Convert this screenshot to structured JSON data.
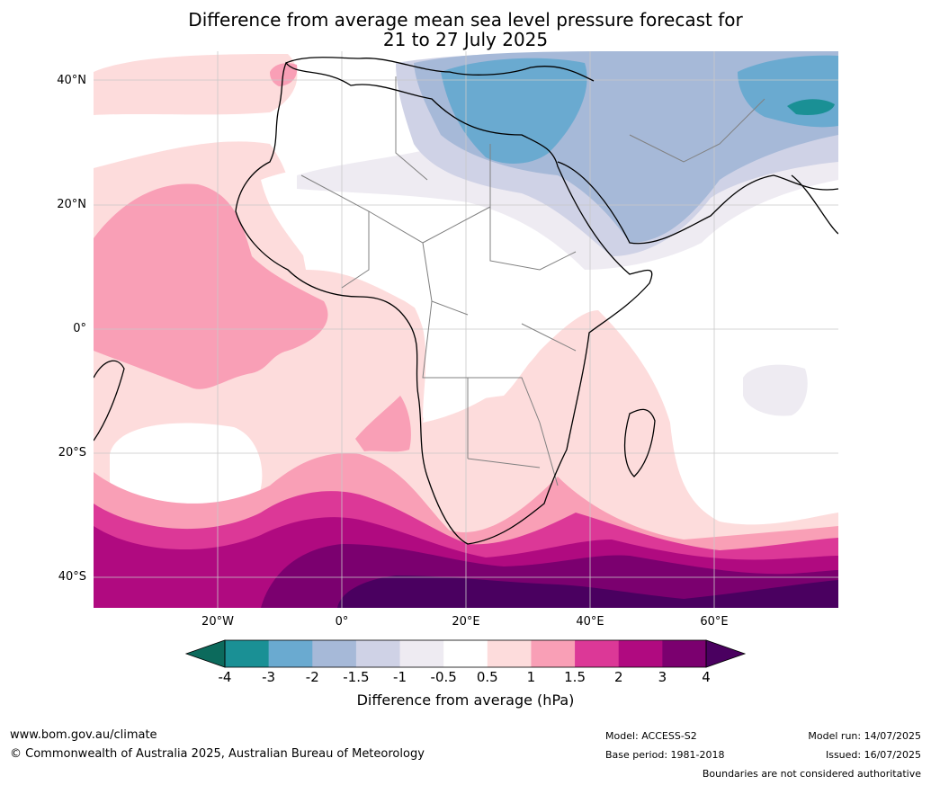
{
  "title": {
    "line1": "Difference from average mean sea level pressure forecast for",
    "line2": "21 to 27 July 2025"
  },
  "map": {
    "region": "Africa and surrounding oceans",
    "lat_labels": [
      "40°N",
      "20°N",
      "0°",
      "20°S",
      "40°S"
    ],
    "lon_labels": [
      "20°W",
      "0°",
      "20°E",
      "40°E",
      "60°E"
    ],
    "land_outline_color": "#000000",
    "border_color": "#808080",
    "grid_color": "#c8c8c8"
  },
  "colorbar": {
    "ticks": [
      "-4",
      "-3",
      "-2",
      "-1.5",
      "-1",
      "-0.5",
      "0.5",
      "1",
      "1.5",
      "2",
      "3",
      "4"
    ],
    "colors": [
      "#1a9095",
      "#6aaad0",
      "#a6b9d8",
      "#cfd2e6",
      "#eeebf2",
      "#ffffff",
      "#fddcdc",
      "#f99fb6",
      "#dc3897",
      "#b00a80",
      "#7b006f"
    ],
    "under_color": "#0c6a5c",
    "over_color": "#4a0060",
    "label": "Difference from average (hPa)"
  },
  "footer": {
    "website": "www.bom.gov.au/climate",
    "copyright": "© Commonwealth of Australia 2025, Australian Bureau of Meteorology",
    "model": "Model: ACCESS-S2",
    "base_period": "Base period: 1981-2018",
    "model_run": "Model run: 14/07/2025",
    "issued": "Issued: 16/07/2025",
    "disclaimer": "Boundaries are not considered authoritative"
  }
}
